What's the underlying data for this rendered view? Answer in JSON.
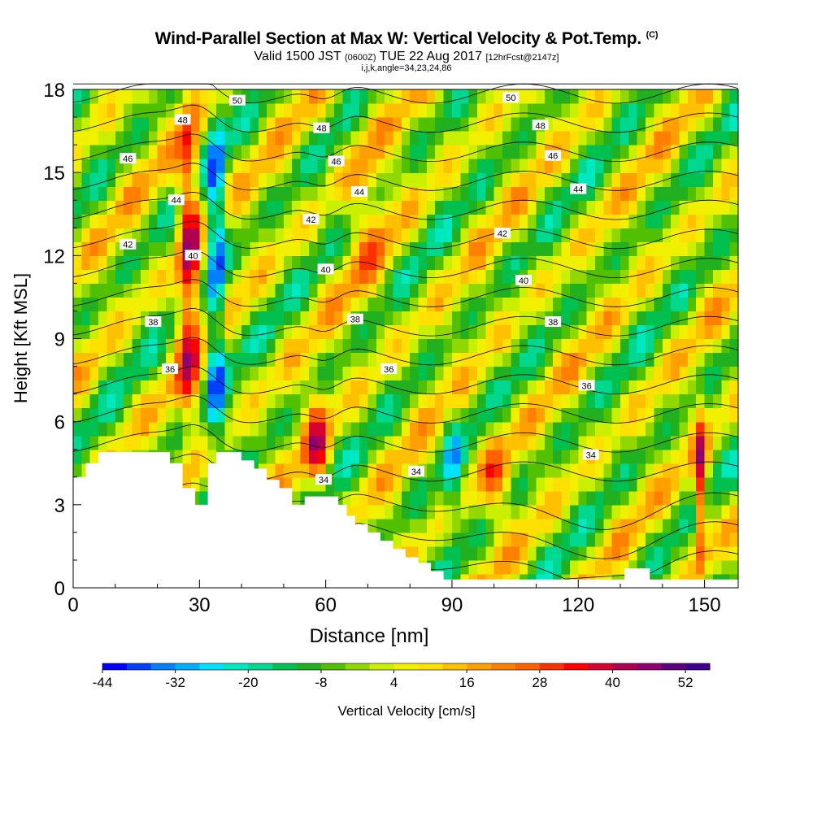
{
  "title": {
    "main": "Wind-Parallel Section at Max W: Vertical Velocity & Pot.Temp.",
    "copyright": "(C)",
    "valid_prefix": "Valid 1500 JST",
    "valid_utc": "(0600Z)",
    "valid_date": "TUE 22 Aug 2017",
    "forecast": "[12hrFcst@2147z]",
    "indices": "i,j,k,angle=34,23,24,86"
  },
  "chart_data": {
    "type": "heatmap",
    "xlabel": "Distance [nm]",
    "ylabel": "Height [Kft MSL]",
    "xlim": [
      0,
      158
    ],
    "ylim": [
      0,
      18
    ],
    "xticks": [
      0,
      30,
      60,
      90,
      120,
      150
    ],
    "yticks": [
      0,
      3,
      6,
      9,
      12,
      15,
      18
    ],
    "colorbar": {
      "label": "Vertical Velocity [cm/s]",
      "min": -44,
      "max": 56,
      "step": 4,
      "tick_labels": [
        "-44",
        "-32",
        "-20",
        "-8",
        "4",
        "16",
        "28",
        "40",
        "52"
      ],
      "colors": [
        "#0000ff",
        "#0040ff",
        "#0080ff",
        "#00b0ff",
        "#00e0ff",
        "#00e8c0",
        "#00d890",
        "#00c050",
        "#20b020",
        "#50c000",
        "#90d800",
        "#c8f000",
        "#f0f000",
        "#ffe000",
        "#ffc000",
        "#ffa000",
        "#ff8000",
        "#ff6000",
        "#ff3000",
        "#ff0000",
        "#d80030",
        "#b00050",
        "#900070",
        "#600080",
        "#400090"
      ]
    },
    "velocity_features": [
      {
        "type": "updraft",
        "x": 27,
        "height_range": [
          6,
          18
        ],
        "peak_cm_s": 52
      },
      {
        "type": "downdraft",
        "x": 38,
        "height_range": [
          5,
          18
        ],
        "peak_cm_s": -36
      },
      {
        "type": "updraft",
        "x": 58,
        "height_range": [
          3,
          7
        ],
        "peak_cm_s": 36
      },
      {
        "type": "updraft",
        "x": 100,
        "height_range": [
          2,
          6
        ],
        "peak_cm_s": 28
      },
      {
        "type": "updraft",
        "x": 149,
        "height_range": [
          2,
          7
        ],
        "peak_cm_s": 44
      }
    ],
    "contour_labels": [
      {
        "text": "50",
        "x": 39,
        "y": 17.6
      },
      {
        "text": "48",
        "x": 26,
        "y": 16.9
      },
      {
        "text": "46",
        "x": 13,
        "y": 15.5
      },
      {
        "text": "44",
        "x": 24.5,
        "y": 14.0
      },
      {
        "text": "42",
        "x": 13,
        "y": 12.4
      },
      {
        "text": "40",
        "x": 28.5,
        "y": 12.0
      },
      {
        "text": "38",
        "x": 19,
        "y": 9.6
      },
      {
        "text": "36",
        "x": 23,
        "y": 7.9
      },
      {
        "text": "48",
        "x": 59,
        "y": 16.6
      },
      {
        "text": "46",
        "x": 62.5,
        "y": 15.4
      },
      {
        "text": "44",
        "x": 68,
        "y": 14.3
      },
      {
        "text": "42",
        "x": 56.5,
        "y": 13.3
      },
      {
        "text": "40",
        "x": 60,
        "y": 11.5
      },
      {
        "text": "38",
        "x": 67,
        "y": 9.7
      },
      {
        "text": "36",
        "x": 75,
        "y": 7.9
      },
      {
        "text": "34",
        "x": 59.5,
        "y": 3.9
      },
      {
        "text": "34",
        "x": 81.5,
        "y": 4.2
      },
      {
        "text": "50",
        "x": 104,
        "y": 17.7
      },
      {
        "text": "48",
        "x": 111,
        "y": 16.7
      },
      {
        "text": "46",
        "x": 114,
        "y": 15.6
      },
      {
        "text": "44",
        "x": 120,
        "y": 14.4
      },
      {
        "text": "42",
        "x": 102,
        "y": 12.8
      },
      {
        "text": "40",
        "x": 107,
        "y": 11.1
      },
      {
        "text": "38",
        "x": 114,
        "y": 9.6
      },
      {
        "text": "36",
        "x": 122,
        "y": 7.3
      },
      {
        "text": "34",
        "x": 123,
        "y": 4.8
      }
    ]
  }
}
